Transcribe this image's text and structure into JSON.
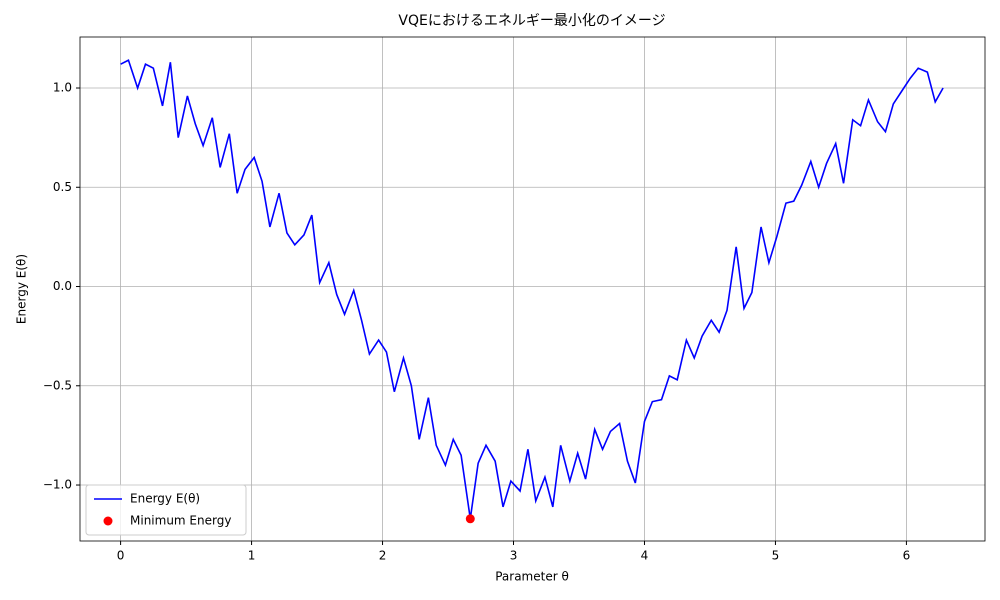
{
  "chart_data": {
    "type": "line",
    "title": "VQEにおけるエネルギー最小化のイメージ",
    "xlabel": "Parameter θ",
    "ylabel": "Energy E(θ)",
    "xlim": [
      -0.31,
      6.6
    ],
    "ylim": [
      -1.282,
      1.257
    ],
    "xticks": [
      0,
      1,
      2,
      3,
      4,
      5,
      6
    ],
    "yticks": [
      {
        "value": -1,
        "label": "−1.0"
      },
      {
        "value": -0.5,
        "label": "−0.5"
      },
      {
        "value": 0,
        "label": "0.0"
      },
      {
        "value": 0.5,
        "label": "0.5"
      },
      {
        "value": 1,
        "label": "1.0"
      }
    ],
    "grid": true,
    "legend": "lower left",
    "series": [
      {
        "name": "Energy E(θ)",
        "type": "line",
        "color": "#0000ff",
        "x": [
          0,
          0.06,
          0.13,
          0.19,
          0.25,
          0.32,
          0.38,
          0.44,
          0.51,
          0.57,
          0.63,
          0.7,
          0.76,
          0.83,
          0.89,
          0.95,
          1.02,
          1.08,
          1.14,
          1.21,
          1.27,
          1.33,
          1.4,
          1.46,
          1.52,
          1.59,
          1.65,
          1.71,
          1.78,
          1.84,
          1.9,
          1.97,
          2.03,
          2.09,
          2.16,
          2.22,
          2.28,
          2.35,
          2.41,
          2.48,
          2.54,
          2.6,
          2.67,
          2.73,
          2.79,
          2.86,
          2.92,
          2.98,
          3.05,
          3.11,
          3.17,
          3.24,
          3.3,
          3.36,
          3.43,
          3.49,
          3.55,
          3.62,
          3.68,
          3.74,
          3.81,
          3.87,
          3.93,
          4.0,
          4.06,
          4.13,
          4.19,
          4.25,
          4.32,
          4.38,
          4.44,
          4.51,
          4.57,
          4.63,
          4.7,
          4.76,
          4.82,
          4.89,
          4.95,
          5.01,
          5.08,
          5.14,
          5.2,
          5.27,
          5.33,
          5.39,
          5.46,
          5.52,
          5.59,
          5.65,
          5.71,
          5.78,
          5.84,
          5.9,
          5.97,
          6.03,
          6.09,
          6.16,
          6.22,
          6.28
        ],
        "values": [
          1.12,
          1.14,
          1.0,
          1.12,
          1.1,
          0.91,
          1.13,
          0.75,
          0.96,
          0.82,
          0.71,
          0.85,
          0.6,
          0.77,
          0.47,
          0.59,
          0.65,
          0.53,
          0.3,
          0.47,
          0.27,
          0.21,
          0.26,
          0.36,
          0.02,
          0.12,
          -0.04,
          -0.14,
          -0.02,
          -0.17,
          -0.34,
          -0.27,
          -0.33,
          -0.53,
          -0.36,
          -0.5,
          -0.77,
          -0.56,
          -0.8,
          -0.9,
          -0.77,
          -0.85,
          -1.17,
          -0.89,
          -0.8,
          -0.88,
          -1.11,
          -0.98,
          -1.03,
          -0.82,
          -1.08,
          -0.96,
          -1.11,
          -0.8,
          -0.98,
          -0.84,
          -0.97,
          -0.72,
          -0.82,
          -0.73,
          -0.69,
          -0.88,
          -0.99,
          -0.68,
          -0.58,
          -0.57,
          -0.45,
          -0.47,
          -0.27,
          -0.36,
          -0.25,
          -0.17,
          -0.23,
          -0.12,
          0.2,
          -0.11,
          -0.03,
          0.3,
          0.12,
          0.25,
          0.42,
          0.43,
          0.51,
          0.63,
          0.5,
          0.62,
          0.72,
          0.52,
          0.84,
          0.81,
          0.94,
          0.83,
          0.78,
          0.92,
          0.99,
          1.05,
          1.1,
          1.08,
          0.93,
          1.0
        ]
      },
      {
        "name": "Minimum Energy",
        "type": "scatter",
        "color": "#ff0000",
        "x": [
          2.67
        ],
        "values": [
          -1.17
        ]
      }
    ]
  }
}
